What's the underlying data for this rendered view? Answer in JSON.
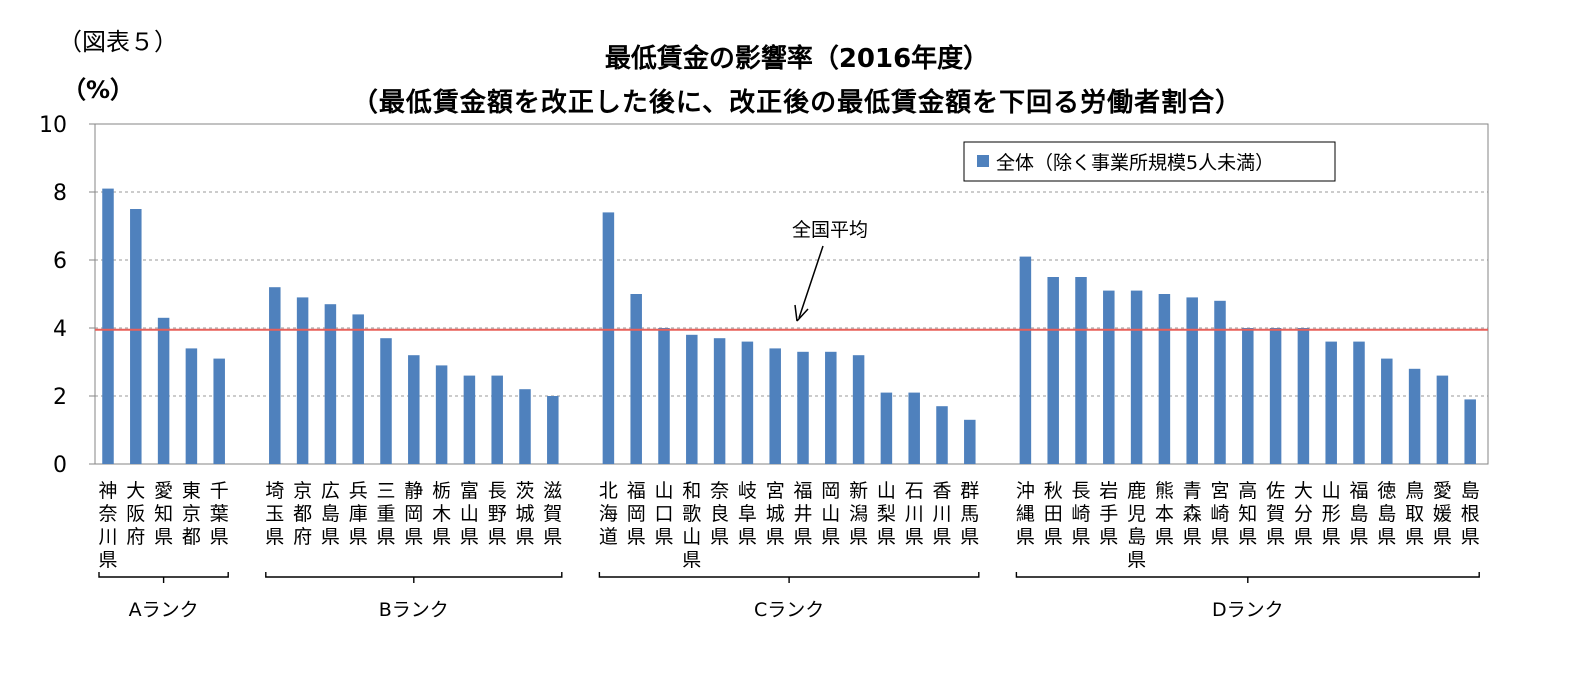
{
  "figure_label": "（図表５）",
  "unit_label": "（%）",
  "chart_data": {
    "type": "bar",
    "title": "最低賃金の影響率（2016年度）",
    "subtitle": "（最低賃金額を改正した後に、改正後の最低賃金額を下回る労働者割合）",
    "ylim": [
      0,
      10
    ],
    "yticks": [
      0,
      2,
      4,
      6,
      8,
      10
    ],
    "grid": true,
    "legend_position": "top-right",
    "series": [
      {
        "name": "全体（除く事業所規模5人未満）",
        "color": "#4f81bd",
        "groups": [
          {
            "rank": "Aランク",
            "categories": [
              "神奈川県",
              "大阪府",
              "愛知県",
              "東京都",
              "千葉県"
            ],
            "values": [
              8.1,
              7.5,
              4.3,
              3.4,
              3.1
            ]
          },
          {
            "rank": "Bランク",
            "categories": [
              "埼玉県",
              "京都府",
              "広島県",
              "兵庫県",
              "三重県",
              "静岡県",
              "栃木県",
              "富山県",
              "長野県",
              "茨城県",
              "滋賀県"
            ],
            "values": [
              5.2,
              4.9,
              4.7,
              4.4,
              3.7,
              3.2,
              2.9,
              2.6,
              2.6,
              2.2,
              2.0
            ]
          },
          {
            "rank": "Cランク",
            "categories": [
              "北海道",
              "福岡県",
              "山口県",
              "和歌山県",
              "奈良県",
              "岐阜県",
              "宮城県",
              "福井県",
              "岡山県",
              "新潟県",
              "山梨県",
              "石川県",
              "香川県",
              "群馬県"
            ],
            "values": [
              7.4,
              5.0,
              4.0,
              3.8,
              3.7,
              3.6,
              3.4,
              3.3,
              3.3,
              3.2,
              2.1,
              2.1,
              1.7,
              1.3
            ]
          },
          {
            "rank": "Dランク",
            "categories": [
              "沖縄県",
              "秋田県",
              "長崎県",
              "岩手県",
              "鹿児島県",
              "熊本県",
              "青森県",
              "宮崎県",
              "高知県",
              "佐賀県",
              "大分県",
              "山形県",
              "福島県",
              "徳島県",
              "鳥取県",
              "愛媛県",
              "島根県"
            ],
            "values": [
              6.1,
              5.5,
              5.5,
              5.1,
              5.1,
              5.0,
              4.9,
              4.8,
              4.0,
              4.0,
              4.0,
              3.6,
              3.6,
              3.1,
              2.8,
              2.6,
              1.9
            ]
          }
        ]
      }
    ],
    "reference_line": {
      "label": "全国平均",
      "value": 3.95,
      "color": "#e8605a"
    }
  }
}
